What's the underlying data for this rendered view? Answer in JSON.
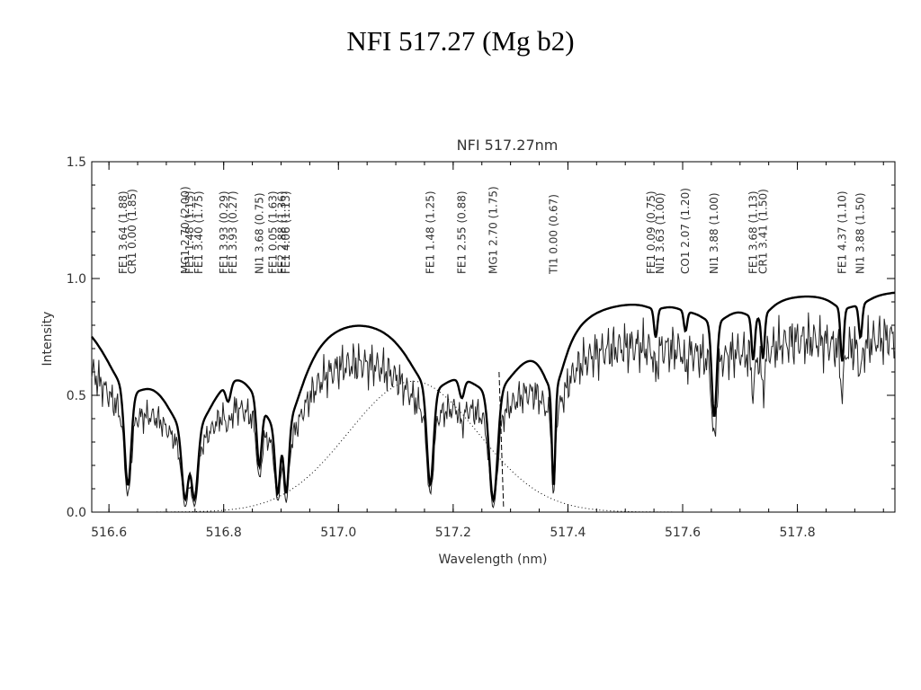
{
  "page": {
    "title": "NFI 517.27 (Mg b2)"
  },
  "chart_data": {
    "type": "line",
    "title": "NFI 517.27nm",
    "xlabel": "Wavelength (nm)",
    "ylabel": "Intensity",
    "xlim": [
      516.57,
      517.97
    ],
    "ylim": [
      0.0,
      1.5
    ],
    "x_ticks": [
      516.6,
      516.8,
      517.0,
      517.2,
      517.4,
      517.6,
      517.8
    ],
    "x_tick_labels": [
      "516.6",
      "516.8",
      "517.0",
      "517.2",
      "517.4",
      "517.6",
      "517.8"
    ],
    "y_ticks": [
      0.0,
      0.5,
      1.0,
      1.5
    ],
    "y_tick_labels": [
      "0.0",
      "0.5",
      "1.0",
      "1.5"
    ],
    "grid": false,
    "continuum": 0.96,
    "lines": [
      {
        "x": 516.633,
        "depth": 0.78,
        "width": 0.008,
        "labels": [
          "FE1 3.64 (1.88)",
          "CR1 0.00 (1.85)"
        ]
      },
      {
        "x": 516.733,
        "depth": 0.84,
        "width": 0.008,
        "labels": [
          "MG1 2.70 (2.00)"
        ]
      },
      {
        "x": 516.749,
        "depth": 0.84,
        "width": 0.008,
        "labels": [
          "FE1 1.48 (1.13)",
          "FE1 3.40 (1.75)"
        ]
      },
      {
        "x": 516.808,
        "depth": 0.14,
        "width": 0.006,
        "labels": [
          "FE1 3.93 (0.29)",
          "FE1 3.93 (0.27)"
        ]
      },
      {
        "x": 516.862,
        "depth": 0.58,
        "width": 0.006,
        "labels": [
          "NI1 3.68 (0.75)"
        ]
      },
      {
        "x": 516.894,
        "depth": 0.78,
        "width": 0.006,
        "labels": [
          "FE1 0.05 (1.63)",
          "FE2 2.88 (1.36)"
        ]
      },
      {
        "x": 516.909,
        "depth": 0.78,
        "width": 0.006,
        "labels": [
          "FE1 4.06 (1.13)"
        ]
      },
      {
        "x": 517.16,
        "depth": 0.78,
        "width": 0.008,
        "labels": [
          "FE1 1.48 (1.25)"
        ]
      },
      {
        "x": 517.215,
        "depth": 0.14,
        "width": 0.006,
        "labels": [
          "FE1 2.55 (0.88)"
        ]
      },
      {
        "x": 517.27,
        "depth": 0.9,
        "width": 0.01,
        "labels": [
          "MG1 2.70 (1.75)"
        ]
      },
      {
        "x": 517.375,
        "depth": 0.8,
        "width": 0.004,
        "labels": [
          "TI1 0.00 (0.67)"
        ]
      },
      {
        "x": 517.553,
        "depth": 0.14,
        "width": 0.004,
        "labels": [
          "FE1 0.09 (0.75)",
          "NI1 3.63 (1.00)"
        ]
      },
      {
        "x": 517.605,
        "depth": 0.1,
        "width": 0.004,
        "labels": [
          "CO1 2.07 (1.20)"
        ]
      },
      {
        "x": 517.655,
        "depth": 0.5,
        "width": 0.006,
        "labels": [
          "NI1 3.88 (1.00)"
        ]
      },
      {
        "x": 517.723,
        "depth": 0.22,
        "width": 0.004,
        "labels": [
          "FE1 3.68 (1.13)"
        ]
      },
      {
        "x": 517.74,
        "depth": 0.22,
        "width": 0.004,
        "labels": [
          "CR1 3.41 (1.50)"
        ]
      },
      {
        "x": 517.878,
        "depth": 0.26,
        "width": 0.004,
        "labels": [
          "FE1 4.37 (1.10)"
        ]
      },
      {
        "x": 517.91,
        "depth": 0.16,
        "width": 0.004,
        "labels": [
          "NI1 3.88 (1.50)"
        ]
      }
    ],
    "series": [
      {
        "style": "thick",
        "description": "solar spectrum (reference)"
      },
      {
        "style": "thin",
        "description": "solar spectrum (offset)"
      },
      {
        "style": "dotted",
        "description": "filter transmission profile",
        "center": 517.13,
        "peak": 0.56,
        "sigma": 0.16
      },
      {
        "style": "dashed",
        "description": "line center marker",
        "x": 517.28
      }
    ]
  }
}
